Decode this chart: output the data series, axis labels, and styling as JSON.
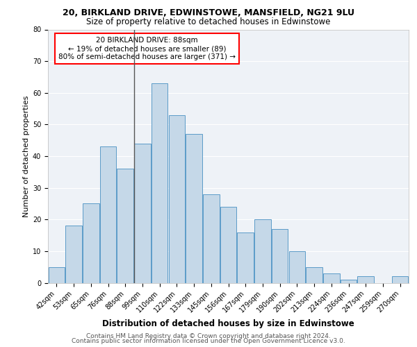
{
  "title1": "20, BIRKLAND DRIVE, EDWINSTOWE, MANSFIELD, NG21 9LU",
  "title2": "Size of property relative to detached houses in Edwinstowe",
  "xlabel": "Distribution of detached houses by size in Edwinstowe",
  "ylabel": "Number of detached properties",
  "categories": [
    "42sqm",
    "53sqm",
    "65sqm",
    "76sqm",
    "88sqm",
    "99sqm",
    "110sqm",
    "122sqm",
    "133sqm",
    "145sqm",
    "156sqm",
    "167sqm",
    "179sqm",
    "190sqm",
    "202sqm",
    "213sqm",
    "224sqm",
    "236sqm",
    "247sqm",
    "259sqm",
    "270sqm"
  ],
  "values": [
    5,
    18,
    25,
    43,
    36,
    44,
    63,
    53,
    47,
    28,
    24,
    16,
    20,
    17,
    10,
    5,
    3,
    1,
    2,
    0,
    2
  ],
  "bar_color": "#c5d8e8",
  "bar_edge_color": "#5b9bc8",
  "highlight_index": 4,
  "highlight_line_color": "#555555",
  "annotation_text": "20 BIRKLAND DRIVE: 88sqm\n← 19% of detached houses are smaller (89)\n80% of semi-detached houses are larger (371) →",
  "annotation_box_color": "white",
  "annotation_box_edge": "red",
  "ylim": [
    0,
    80
  ],
  "yticks": [
    0,
    10,
    20,
    30,
    40,
    50,
    60,
    70,
    80
  ],
  "footer1": "Contains HM Land Registry data © Crown copyright and database right 2024.",
  "footer2": "Contains public sector information licensed under the Open Government Licence v3.0.",
  "bg_color": "#eef2f7",
  "grid_color": "#ffffff",
  "title1_fontsize": 9,
  "title2_fontsize": 8.5,
  "xlabel_fontsize": 8.5,
  "ylabel_fontsize": 8,
  "tick_fontsize": 7,
  "annotation_fontsize": 7.5,
  "footer_fontsize": 6.5
}
